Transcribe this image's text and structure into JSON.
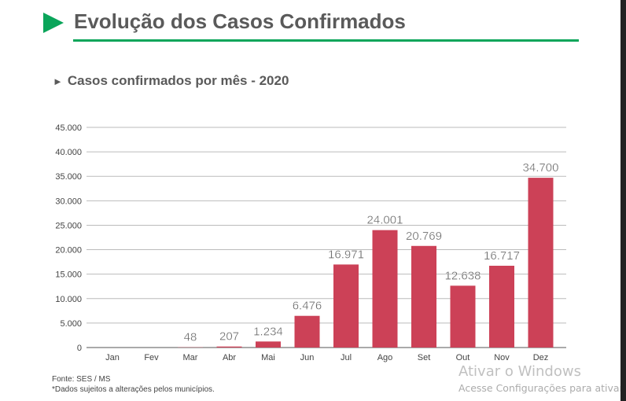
{
  "header": {
    "title": "Evolução dos Casos Confirmados",
    "subtitle": "Casos confirmados por mês - 2020",
    "subtitle_arrow": "►"
  },
  "chart_data": {
    "type": "bar",
    "title": "Casos confirmados por mês - 2020",
    "categories": [
      "Jan",
      "Fev",
      "Mar",
      "Abr",
      "Mai",
      "Jun",
      "Jul",
      "Ago",
      "Set",
      "Out",
      "Nov",
      "Dez"
    ],
    "values": [
      0,
      0,
      48,
      207,
      1234,
      6476,
      16971,
      24001,
      20769,
      12638,
      16717,
      34700
    ],
    "data_labels": [
      "",
      "",
      "48",
      "207",
      "1.234",
      "6.476",
      "16.971",
      "24.001",
      "20.769",
      "12.638",
      "16.717",
      "34.700"
    ],
    "yticks": [
      "0",
      "5.000",
      "10.000",
      "15.000",
      "20.000",
      "25.000",
      "30.000",
      "35.000",
      "40.000",
      "45.000"
    ],
    "ylim": [
      0,
      45000
    ],
    "grid": true,
    "bar_color": "#cc4157"
  },
  "footer": {
    "source": "Fonte: SES / MS",
    "note": "*Dados sujeitos a alterações pelos municípios."
  },
  "watermark": {
    "line1": "Ativar o Windows",
    "line2": "Acesse Configurações para ativar"
  }
}
